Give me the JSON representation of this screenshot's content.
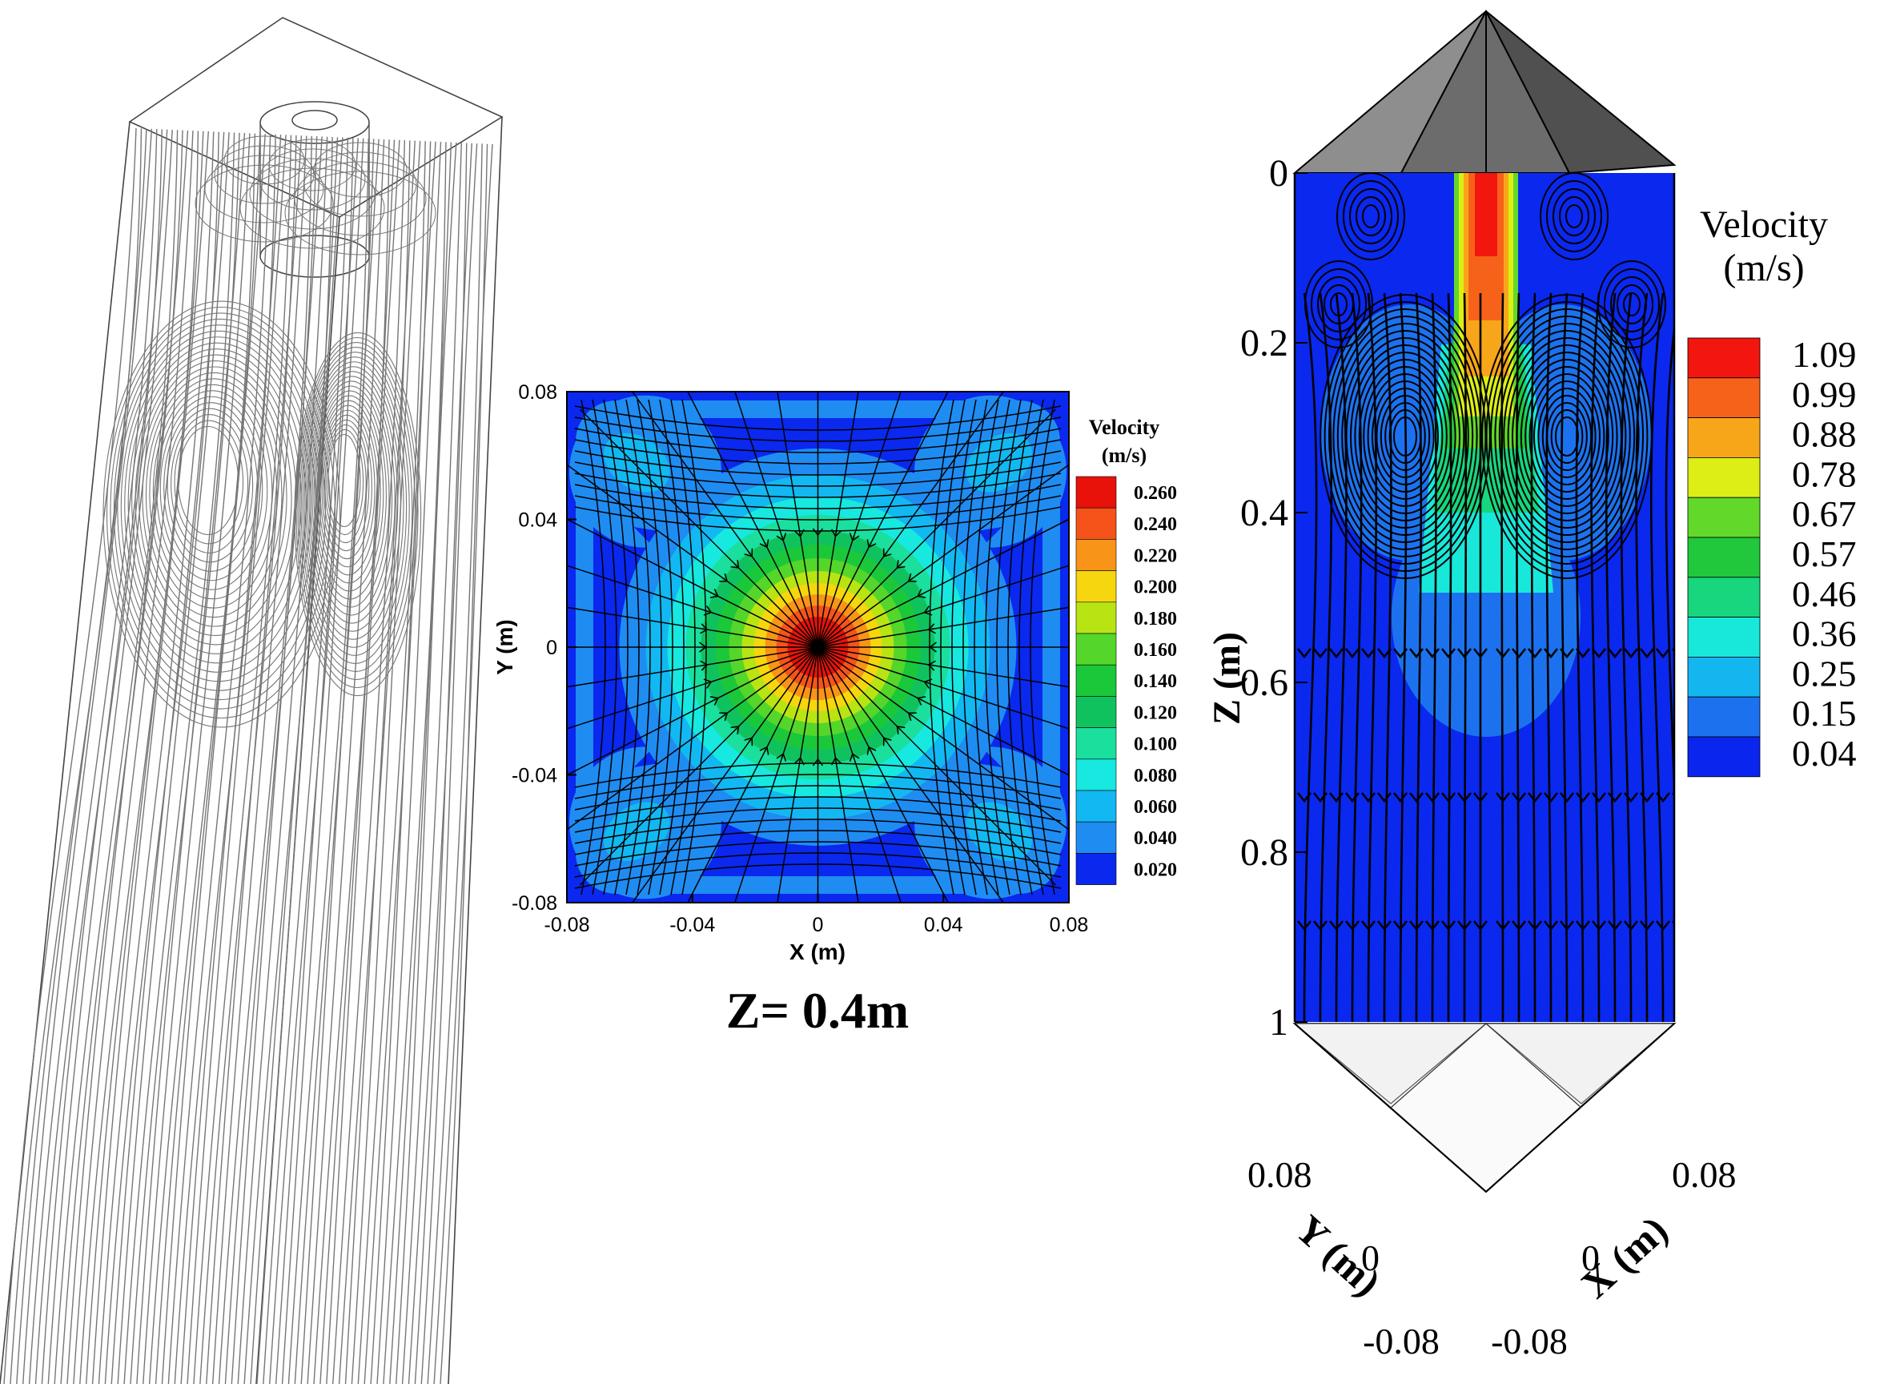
{
  "figure": {
    "panel_3d_streamlines": {
      "description_visible": false
    },
    "panel_slice": {
      "caption": "Z= 0.4m"
    }
  },
  "chart_data": [
    {
      "type": "heatmap",
      "title": "",
      "xlabel": "X (m)",
      "ylabel": "Y (m)",
      "xlim": [
        -0.08,
        0.08
      ],
      "ylim": [
        -0.08,
        0.08
      ],
      "x_ticks": [
        "-0.08",
        "-0.04",
        "0",
        "0.04",
        "0.08"
      ],
      "y_ticks": [
        "0.08",
        "0.04",
        "0",
        "-0.04",
        "-0.08"
      ],
      "caption": "Z= 0.4m",
      "legend": {
        "title_line1": "Velocity",
        "title_line2": "(m/s)",
        "placement": "right",
        "levels": [
          "0.260",
          "0.240",
          "0.220",
          "0.200",
          "0.180",
          "0.160",
          "0.140",
          "0.120",
          "0.100",
          "0.080",
          "0.060",
          "0.040",
          "0.020"
        ],
        "colors": [
          "#e8120a",
          "#f5531a",
          "#f89418",
          "#f5d60f",
          "#b8e414",
          "#55d62a",
          "#1bc83a",
          "#10c25e",
          "#1adf9d",
          "#17e8e0",
          "#12b8f2",
          "#1f8cf2",
          "#0a28ee"
        ]
      },
      "field": {
        "kind": "radial-jet",
        "center": [
          0,
          0
        ],
        "peak_value": 0.26,
        "background_value": 0.03
      }
    },
    {
      "type": "heatmap",
      "title": "",
      "xlabel": "X (m)",
      "ylabel": "Y (m)",
      "zlabel": "Z (m)",
      "z_ticks": [
        "0",
        "0.2",
        "0.4",
        "0.6",
        "0.8",
        "1"
      ],
      "x_ticks": [
        "0.08",
        "0",
        "-0.08"
      ],
      "y_ticks": [
        "0.08",
        "0",
        "-0.08"
      ],
      "zlim": [
        0,
        1
      ],
      "legend": {
        "title_line1": "Velocity",
        "title_line2": "(m/s)",
        "placement": "right",
        "levels": [
          "1.09",
          "0.99",
          "0.88",
          "0.78",
          "0.67",
          "0.57",
          "0.46",
          "0.36",
          "0.25",
          "0.15",
          "0.04"
        ],
        "colors": [
          "#f2160f",
          "#f7621b",
          "#f8a619",
          "#dcee16",
          "#62d82a",
          "#21c83b",
          "#17d67d",
          "#18e8da",
          "#14b6f0",
          "#1c72ee",
          "#0a26ee"
        ]
      }
    }
  ],
  "colors": {
    "domain_blue": "#0a28ee",
    "streamline_black": "#000000",
    "streamline_grey": "#6e6e6e",
    "roof_grey": "#8a8a8a"
  }
}
